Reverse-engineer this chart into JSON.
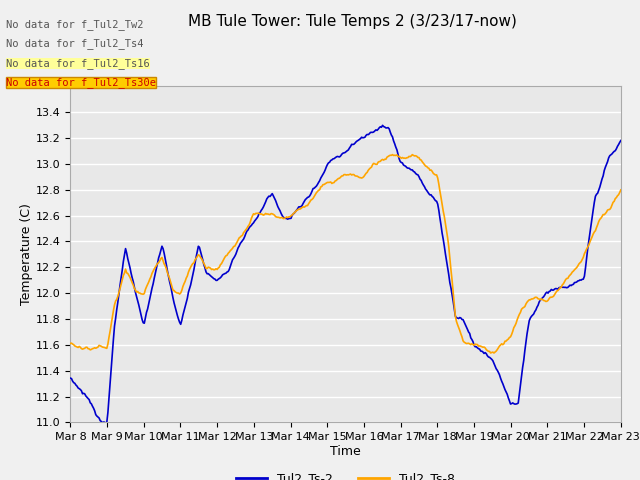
{
  "title": "MB Tule Tower: Tule Temps 2 (3/23/17-now)",
  "xlabel": "Time",
  "ylabel": "Temperature (C)",
  "ylim": [
    11.0,
    13.6
  ],
  "yticks": [
    11.0,
    11.2,
    11.4,
    11.6,
    11.8,
    12.0,
    12.2,
    12.4,
    12.6,
    12.8,
    13.0,
    13.2,
    13.4
  ],
  "xtick_labels": [
    "Mar 8",
    "Mar 9",
    "Mar 10",
    "Mar 11",
    "Mar 12",
    "Mar 13",
    "Mar 14",
    "Mar 15",
    "Mar 16",
    "Mar 17",
    "Mar 18",
    "Mar 19",
    "Mar 20",
    "Mar 21",
    "Mar 22",
    "Mar 23"
  ],
  "color_ts2": "#0000cc",
  "color_ts8": "#ffa500",
  "legend_labels": [
    "Tul2_Ts-2",
    "Tul2_Ts-8"
  ],
  "no_data_texts": [
    "No data for f_Tul2_Tw2",
    "No data for f_Tul2_Ts4",
    "No data for f_Tul2_Ts16",
    "No data for f_Tul2_Ts30e"
  ],
  "background_color": "#f0f0f0",
  "plot_bg_color": "#e8e8e8",
  "grid_color": "#ffffff",
  "title_fontsize": 11,
  "axis_fontsize": 9,
  "tick_fontsize": 8
}
